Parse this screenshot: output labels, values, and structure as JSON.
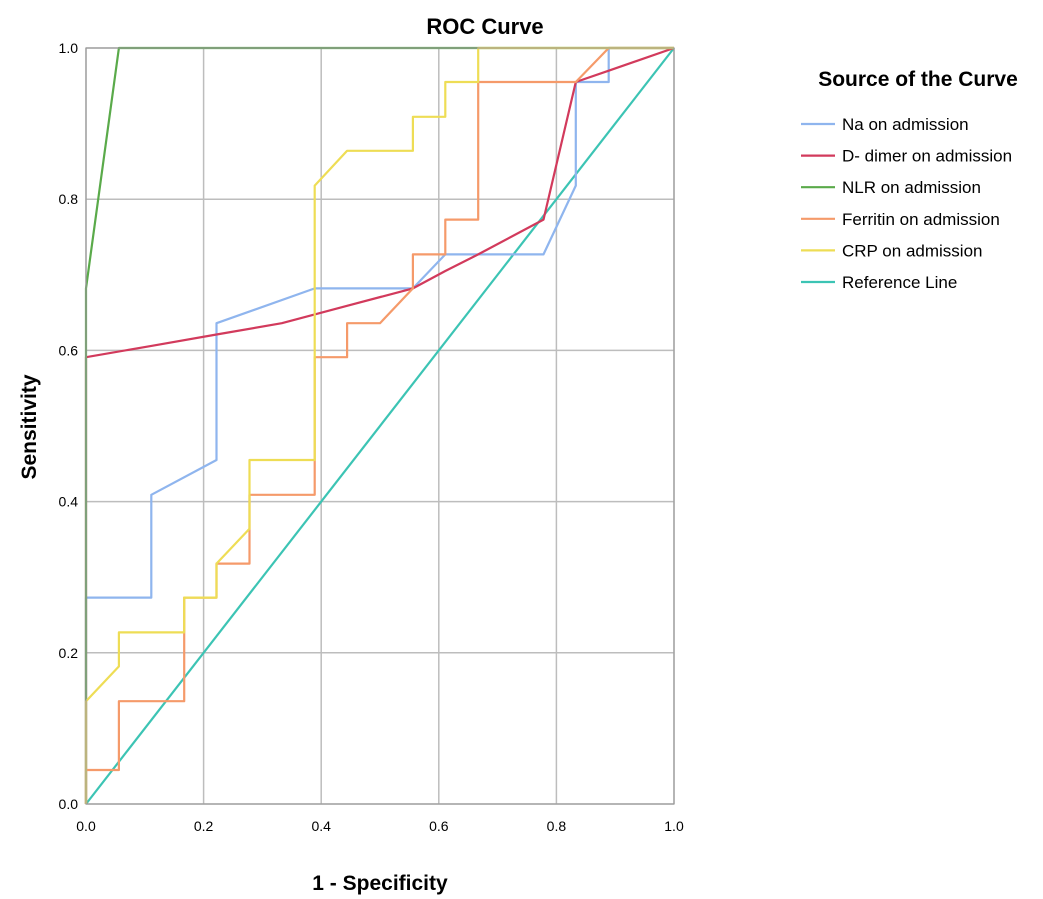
{
  "chart_data": {
    "type": "line",
    "title": "ROC Curve",
    "xlabel": "1 - Specificity",
    "ylabel": "Sensitivity",
    "xlim": [
      0,
      1
    ],
    "ylim": [
      0,
      1
    ],
    "x_ticks": [
      "0.0",
      "0.2",
      "0.4",
      "0.6",
      "0.8",
      "1.0"
    ],
    "y_ticks": [
      "0.0",
      "0.2",
      "0.4",
      "0.6",
      "0.8",
      "1.0"
    ],
    "grid": true,
    "legend": {
      "title": "Source of the Curve",
      "position": "right"
    },
    "series": [
      {
        "name": "Na on admission",
        "color": "#8fb5ee",
        "x": [
          0,
          0,
          0.111,
          0.111,
          0.222,
          0.222,
          0.389,
          0.556,
          0.611,
          0.778,
          0.833,
          0.833,
          0.889,
          0.889,
          1.0
        ],
        "y": [
          0,
          0.273,
          0.273,
          0.409,
          0.455,
          0.636,
          0.682,
          0.682,
          0.727,
          0.727,
          0.818,
          0.955,
          0.955,
          1.0,
          1.0
        ]
      },
      {
        "name": "D- dimer  on admission",
        "color": "#d23a5c",
        "x": [
          0,
          0,
          0.111,
          0.222,
          0.333,
          0.444,
          0.556,
          0.611,
          0.667,
          0.778,
          0.833,
          0.889,
          1.0
        ],
        "y": [
          0,
          0.591,
          0.606,
          0.621,
          0.636,
          0.659,
          0.682,
          0.705,
          0.727,
          0.773,
          0.955,
          0.97,
          1.0
        ]
      },
      {
        "name": "NLR  on admission",
        "color": "#5aaa4a",
        "x": [
          0,
          0,
          0.056,
          1.0
        ],
        "y": [
          0,
          0.682,
          1.0,
          1.0
        ]
      },
      {
        "name": "Ferritin  on admission",
        "color": "#f59a6a",
        "x": [
          0,
          0,
          0.056,
          0.056,
          0.167,
          0.167,
          0.222,
          0.222,
          0.278,
          0.278,
          0.389,
          0.389,
          0.444,
          0.444,
          0.5,
          0.556,
          0.556,
          0.611,
          0.611,
          0.667,
          0.667,
          0.833,
          0.889,
          1.0
        ],
        "y": [
          0,
          0.045,
          0.045,
          0.136,
          0.136,
          0.273,
          0.273,
          0.318,
          0.318,
          0.409,
          0.409,
          0.591,
          0.591,
          0.636,
          0.636,
          0.682,
          0.727,
          0.727,
          0.773,
          0.773,
          0.955,
          0.955,
          1.0,
          1.0
        ]
      },
      {
        "name": "CRP  on admission",
        "color": "#eedd55",
        "x": [
          0,
          0,
          0.056,
          0.056,
          0.167,
          0.167,
          0.222,
          0.222,
          0.278,
          0.278,
          0.389,
          0.389,
          0.444,
          0.556,
          0.556,
          0.611,
          0.611,
          0.667,
          0.667,
          1.0
        ],
        "y": [
          0,
          0.136,
          0.182,
          0.227,
          0.227,
          0.273,
          0.273,
          0.318,
          0.364,
          0.455,
          0.455,
          0.818,
          0.864,
          0.864,
          0.909,
          0.909,
          0.955,
          0.955,
          1.0,
          1.0
        ]
      },
      {
        "name": "Reference Line",
        "color": "#3cc4b4",
        "x": [
          0,
          1.0
        ],
        "y": [
          0,
          1.0
        ]
      }
    ]
  }
}
